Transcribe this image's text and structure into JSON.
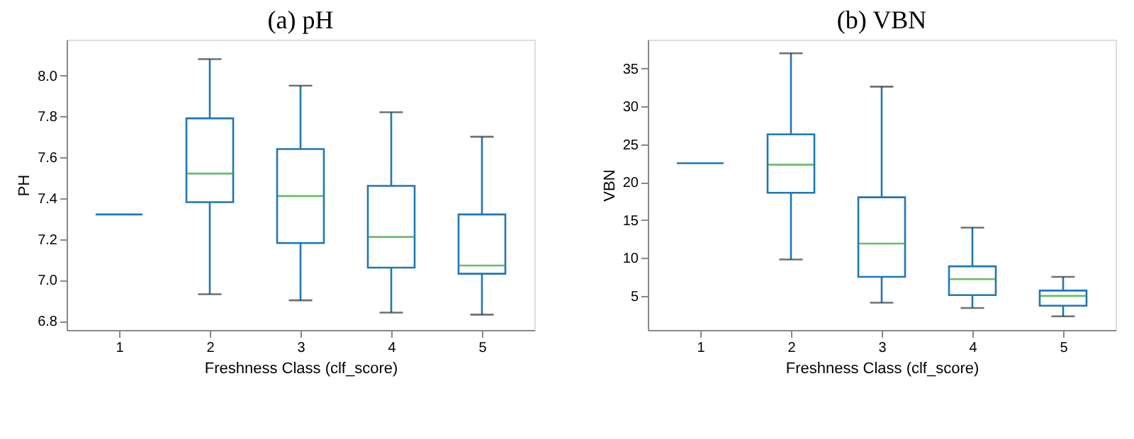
{
  "chart_data": [
    {
      "type": "box",
      "title": "(a)  pH",
      "xlabel": "Freshness Class (clf_score)",
      "ylabel": "PH",
      "categories": [
        "1",
        "2",
        "3",
        "4",
        "5"
      ],
      "color": "#1f77b4",
      "ylim": [
        6.755,
        8.175
      ],
      "yticks": [
        {
          "value": 6.8,
          "label": "6.8"
        },
        {
          "value": 7,
          "label": "7.0"
        },
        {
          "value": 7.2,
          "label": "7.2"
        },
        {
          "value": 7.4,
          "label": "7.4"
        },
        {
          "value": 7.6,
          "label": "7.6"
        },
        {
          "value": 7.8,
          "label": "7.8"
        },
        {
          "value": 8,
          "label": "8.0"
        }
      ],
      "grid": false,
      "boxes": [
        {
          "low": 7.32,
          "q1": 7.32,
          "median": 7.32,
          "q3": 7.32,
          "high": 7.32
        },
        {
          "low": 6.93,
          "q1": 7.38,
          "median": 7.52,
          "q3": 7.79,
          "high": 8.08
        },
        {
          "low": 6.9,
          "q1": 7.18,
          "median": 7.41,
          "q3": 7.64,
          "high": 7.95
        },
        {
          "low": 6.84,
          "q1": 7.06,
          "median": 7.21,
          "q3": 7.46,
          "high": 7.82
        },
        {
          "low": 6.83,
          "q1": 7.03,
          "median": 7.07,
          "q3": 7.32,
          "high": 7.7
        }
      ]
    },
    {
      "type": "box",
      "title": "(b)  VBN",
      "xlabel": "Freshness Class (clf_score)",
      "ylabel": "VBN",
      "categories": [
        "1",
        "2",
        "3",
        "4",
        "5"
      ],
      "color": "#1f77b4",
      "ylim": [
        0.5,
        38.8
      ],
      "yticks": [
        5,
        10,
        15,
        20,
        25,
        30,
        35
      ],
      "grid": false,
      "boxes": [
        {
          "low": 22.5,
          "q1": 22.5,
          "median": 22.5,
          "q3": 22.5,
          "high": 22.5
        },
        {
          "low": 9.8,
          "q1": 18.6,
          "median": 22.3,
          "q3": 26.3,
          "high": 37.0
        },
        {
          "low": 4.1,
          "q1": 7.5,
          "median": 11.9,
          "q3": 18.0,
          "high": 32.6
        },
        {
          "low": 3.4,
          "q1": 5.1,
          "median": 7.2,
          "q3": 8.9,
          "high": 14.0
        },
        {
          "low": 2.3,
          "q1": 3.7,
          "median": 5.0,
          "q3": 5.7,
          "high": 7.5
        }
      ]
    }
  ]
}
